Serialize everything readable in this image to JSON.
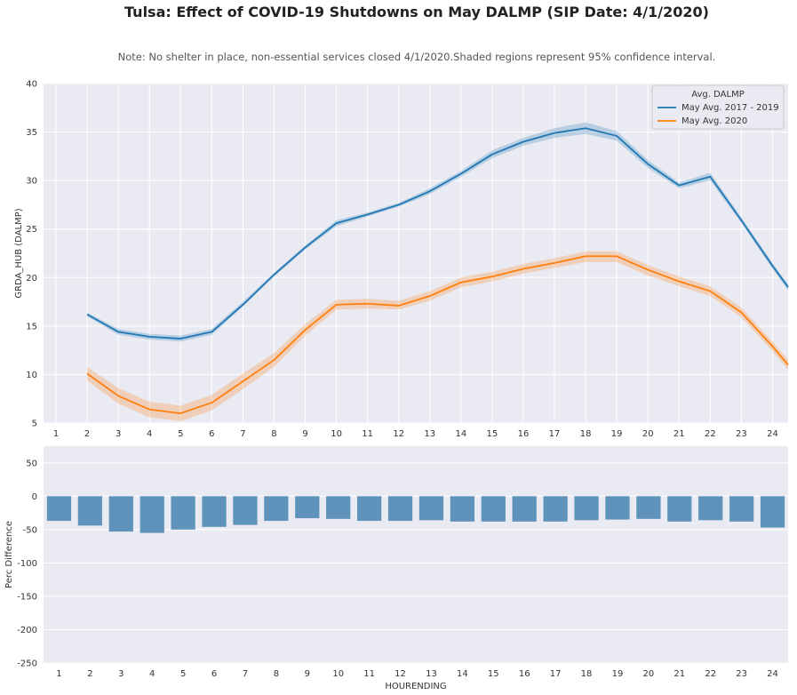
{
  "figure": {
    "title": "Tulsa: Effect of COVID-19 Shutdowns on May DALMP (SIP Date: 4/1/2020)",
    "note": "Note: No shelter in place, non-essential services closed 4/1/2020.Shaded regions represent 95% confidence interval."
  },
  "colors": {
    "background": "#eaeaf2",
    "grid": "#ffffff",
    "series_2017_2019": "#1f77b4",
    "series_2020": "#ff7f0e",
    "bars": "#5f93bb"
  },
  "chart_data": [
    {
      "type": "line",
      "title": "",
      "xlabel": "",
      "ylabel": "GRDA_HUB (DALMP)",
      "x": [
        1,
        2,
        3,
        4,
        5,
        6,
        7,
        8,
        9,
        10,
        11,
        12,
        13,
        14,
        15,
        16,
        17,
        18,
        19,
        20,
        21,
        22,
        23,
        24
      ],
      "x_tick_labels": [
        "1",
        "2",
        "3",
        "4",
        "5",
        "6",
        "7",
        "8",
        "9",
        "10",
        "11",
        "12",
        "13",
        "14",
        "15",
        "16",
        "17",
        "18",
        "19",
        "20",
        "21",
        "22",
        "23",
        "24"
      ],
      "xlim": [
        0.6,
        24.5
      ],
      "ylim": [
        5,
        40
      ],
      "y_ticks": [
        5,
        10,
        15,
        20,
        25,
        30,
        35,
        40
      ],
      "grid": true,
      "legend": {
        "title": "Avg. DALMP",
        "placement": "top-right"
      },
      "series": [
        {
          "name": "May Avg. 2017 - 2019",
          "x": [
            2,
            3,
            4,
            5,
            6,
            7,
            8,
            9,
            10,
            11,
            12,
            13,
            14,
            15,
            16,
            17,
            18,
            19,
            20,
            21,
            22,
            23,
            24,
            24.5
          ],
          "values": [
            16.2,
            14.4,
            13.9,
            13.7,
            14.4,
            17.2,
            20.3,
            23.1,
            25.6,
            26.5,
            27.5,
            28.9,
            30.7,
            32.7,
            34.0,
            34.9,
            35.4,
            34.6,
            31.7,
            29.5,
            30.4,
            25.9,
            21.2,
            19.0
          ],
          "ci_lower": [
            16.0,
            14.1,
            13.6,
            13.4,
            14.1,
            17.0,
            20.1,
            22.9,
            25.3,
            26.3,
            27.3,
            28.6,
            30.4,
            32.3,
            33.6,
            34.4,
            34.8,
            34.1,
            31.3,
            29.2,
            30.0,
            25.6,
            20.9,
            18.7
          ],
          "ci_upper": [
            16.4,
            14.7,
            14.2,
            14.0,
            14.7,
            17.5,
            20.5,
            23.3,
            25.9,
            26.7,
            27.7,
            29.2,
            31.0,
            33.1,
            34.4,
            35.4,
            36.0,
            35.1,
            32.1,
            29.8,
            30.8,
            26.2,
            21.5,
            19.3
          ]
        },
        {
          "name": "May Avg. 2020",
          "x": [
            2,
            3,
            4,
            5,
            6,
            7,
            8,
            9,
            10,
            11,
            12,
            13,
            14,
            15,
            16,
            17,
            18,
            19,
            20,
            21,
            22,
            23,
            24,
            24.5
          ],
          "values": [
            10.1,
            7.8,
            6.4,
            6.0,
            7.1,
            9.3,
            11.5,
            14.6,
            17.2,
            17.3,
            17.1,
            18.1,
            19.5,
            20.1,
            20.9,
            21.5,
            22.2,
            22.2,
            20.8,
            19.6,
            18.6,
            16.4,
            12.9,
            11.0
          ],
          "ci_lower": [
            9.4,
            7.0,
            5.6,
            5.2,
            6.3,
            8.5,
            10.8,
            14.0,
            16.7,
            16.8,
            16.7,
            17.6,
            19.0,
            19.6,
            20.4,
            21.0,
            21.6,
            21.6,
            20.2,
            19.1,
            18.1,
            15.9,
            12.4,
            10.5
          ],
          "ci_upper": [
            10.8,
            8.6,
            7.2,
            6.8,
            7.9,
            10.1,
            12.2,
            15.2,
            17.7,
            17.8,
            17.6,
            18.6,
            20.0,
            20.6,
            21.4,
            22.0,
            22.7,
            22.7,
            21.3,
            20.1,
            19.1,
            16.9,
            13.4,
            11.5
          ]
        }
      ]
    },
    {
      "type": "bar",
      "title": "",
      "xlabel": "HOURENDING",
      "ylabel": "Perc Difference",
      "categories": [
        "1",
        "2",
        "3",
        "4",
        "5",
        "6",
        "7",
        "8",
        "9",
        "10",
        "11",
        "12",
        "13",
        "14",
        "15",
        "16",
        "17",
        "18",
        "19",
        "20",
        "21",
        "22",
        "23",
        "24"
      ],
      "values": [
        -37,
        -44,
        -53,
        -55,
        -50,
        -46,
        -43,
        -37,
        -33,
        -34,
        -37,
        -37,
        -36,
        -38,
        -38,
        -38,
        -38,
        -36,
        -35,
        -34,
        -38,
        -36,
        -38,
        -47
      ],
      "ylim": [
        -250,
        75
      ],
      "y_ticks": [
        -250,
        -200,
        -150,
        -100,
        -50,
        0,
        50
      ],
      "grid": true
    }
  ]
}
